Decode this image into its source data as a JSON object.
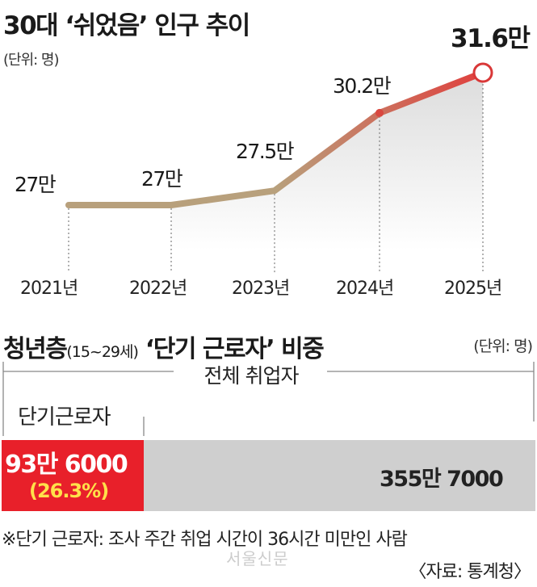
{
  "chart_data": [
    {
      "type": "line",
      "title": "30대 ‘쉬었음’ 인구 추이",
      "unit": "(단위: 명)",
      "categories": [
        "2021년",
        "2022년",
        "2023년",
        "2024년",
        "2025년"
      ],
      "values": [
        270000,
        270000,
        275000,
        302000,
        316000
      ],
      "data_labels": [
        "27만",
        "27만",
        "27.5만",
        "30.2만",
        "31.6만"
      ],
      "ylim": [
        260000,
        320000
      ],
      "colors": {
        "start": "#b8a07c",
        "end": "#e0403e",
        "highlight": "#d93838"
      }
    },
    {
      "type": "bar",
      "title": "청년층",
      "title_age": "(15~29세)",
      "title_rest": "‘단기 근로자’ 비중",
      "unit": "(단위: 명)",
      "total_label": "전체 취업자",
      "short_label": "단기근로자",
      "segments": [
        {
          "label": "93만 6000",
          "value": 936000,
          "percent_label": "(26.3%)",
          "color": "#e8202a"
        },
        {
          "label": "355만 7000",
          "value": 3557000,
          "color": "#cfcfcf"
        }
      ]
    }
  ],
  "note": "※단기 근로자: 조사 주간 취업 시간이 36시간 미만인 사람",
  "source": "〈자료: 통계청〉",
  "watermark": "서울신문"
}
